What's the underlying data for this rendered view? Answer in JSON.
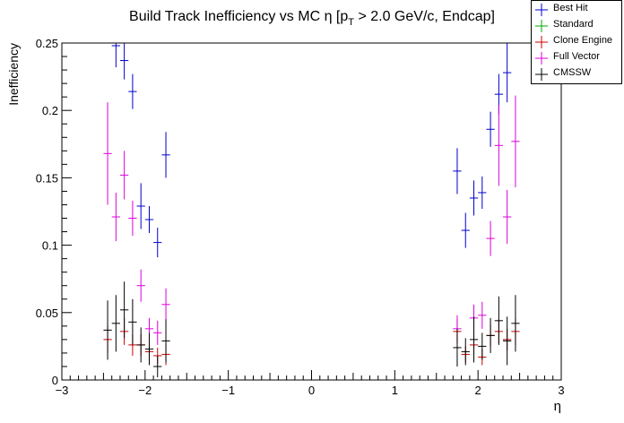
{
  "chart_data": {
    "type": "scatter",
    "title": "Build Track Inefficiency vs MC η [p_T > 2.0 GeV/c, Endcap]",
    "title_main": "Build Track Inefficiency vs MC η [p",
    "title_sub": "T",
    "title_tail": " > 2.0 GeV/c, Endcap]",
    "xlabel": "η",
    "ylabel": "Inefficiency",
    "xlim": [
      -3,
      3
    ],
    "ylim": [
      0,
      0.25
    ],
    "x_ticks": [
      -3,
      -2,
      -1,
      0,
      1,
      2,
      3
    ],
    "x_tick_labels": [
      "−3",
      "−2",
      "−1",
      "0",
      "1",
      "2",
      "3"
    ],
    "y_ticks": [
      0,
      0.05,
      0.1,
      0.15,
      0.2,
      0.25
    ],
    "y_tick_labels": [
      "0",
      "0.05",
      "0.1",
      "0.15",
      "0.2",
      "0.25"
    ],
    "legend_position": "top-right",
    "series": [
      {
        "name": "Best Hit",
        "color": "#0000cc",
        "points": [
          {
            "x": -2.35,
            "y": 0.248,
            "e": 0.016
          },
          {
            "x": -2.25,
            "y": 0.237,
            "e": 0.014
          },
          {
            "x": -2.15,
            "y": 0.214,
            "e": 0.013
          },
          {
            "x": -2.05,
            "y": 0.129,
            "e": 0.017
          },
          {
            "x": -1.95,
            "y": 0.119,
            "e": 0.01
          },
          {
            "x": -1.85,
            "y": 0.102,
            "e": 0.011
          },
          {
            "x": -1.75,
            "y": 0.167,
            "e": 0.017
          },
          {
            "x": 1.75,
            "y": 0.155,
            "e": 0.017
          },
          {
            "x": 1.85,
            "y": 0.111,
            "e": 0.013
          },
          {
            "x": 1.95,
            "y": 0.135,
            "e": 0.013
          },
          {
            "x": 2.05,
            "y": 0.139,
            "e": 0.012
          },
          {
            "x": 2.15,
            "y": 0.186,
            "e": 0.013
          },
          {
            "x": 2.25,
            "y": 0.212,
            "e": 0.015
          },
          {
            "x": 2.35,
            "y": 0.228,
            "e": 0.022
          }
        ]
      },
      {
        "name": "Standard",
        "color": "#00aa00",
        "points": []
      },
      {
        "name": "Clone Engine",
        "color": "#cc0000",
        "points": [
          {
            "x": -2.45,
            "y": 0.03,
            "e": 0.01
          },
          {
            "x": -2.25,
            "y": 0.036,
            "e": 0.01
          },
          {
            "x": -2.15,
            "y": 0.026,
            "e": 0.008
          },
          {
            "x": -2.05,
            "y": 0.026,
            "e": 0.008
          },
          {
            "x": -1.95,
            "y": 0.021,
            "e": 0.007
          },
          {
            "x": -1.85,
            "y": 0.018,
            "e": 0.006
          },
          {
            "x": -1.75,
            "y": 0.019,
            "e": 0.008
          },
          {
            "x": 1.75,
            "y": 0.036,
            "e": 0.009
          },
          {
            "x": 1.85,
            "y": 0.019,
            "e": 0.006
          },
          {
            "x": 1.95,
            "y": 0.026,
            "e": 0.007
          },
          {
            "x": 2.05,
            "y": 0.017,
            "e": 0.006
          },
          {
            "x": 2.15,
            "y": 0.033,
            "e": 0.008
          },
          {
            "x": 2.25,
            "y": 0.036,
            "e": 0.009
          },
          {
            "x": 2.35,
            "y": 0.03,
            "e": 0.008
          },
          {
            "x": 2.45,
            "y": 0.036,
            "e": 0.01
          }
        ]
      },
      {
        "name": "Full Vector",
        "color": "#dd00dd",
        "points": [
          {
            "x": -2.45,
            "y": 0.168,
            "e": 0.038
          },
          {
            "x": -2.35,
            "y": 0.121,
            "e": 0.018
          },
          {
            "x": -2.25,
            "y": 0.152,
            "e": 0.018
          },
          {
            "x": -2.15,
            "y": 0.12,
            "e": 0.013
          },
          {
            "x": -2.05,
            "y": 0.07,
            "e": 0.012
          },
          {
            "x": -1.95,
            "y": 0.038,
            "e": 0.008
          },
          {
            "x": -1.85,
            "y": 0.035,
            "e": 0.009
          },
          {
            "x": -1.75,
            "y": 0.056,
            "e": 0.012
          },
          {
            "x": 1.75,
            "y": 0.038,
            "e": 0.01
          },
          {
            "x": 1.95,
            "y": 0.046,
            "e": 0.01
          },
          {
            "x": 2.05,
            "y": 0.048,
            "e": 0.01
          },
          {
            "x": 2.15,
            "y": 0.105,
            "e": 0.013
          },
          {
            "x": 2.25,
            "y": 0.174,
            "e": 0.03
          },
          {
            "x": 2.35,
            "y": 0.121,
            "e": 0.02
          },
          {
            "x": 2.45,
            "y": 0.177,
            "e": 0.034
          }
        ]
      },
      {
        "name": "CMSSW",
        "color": "#000000",
        "points": [
          {
            "x": -2.45,
            "y": 0.037,
            "e": 0.022
          },
          {
            "x": -2.35,
            "y": 0.042,
            "e": 0.021
          },
          {
            "x": -2.25,
            "y": 0.052,
            "e": 0.021
          },
          {
            "x": -2.15,
            "y": 0.043,
            "e": 0.017
          },
          {
            "x": -2.05,
            "y": 0.026,
            "e": 0.013
          },
          {
            "x": -1.95,
            "y": 0.023,
            "e": 0.012
          },
          {
            "x": -1.85,
            "y": 0.01,
            "e": 0.008
          },
          {
            "x": -1.75,
            "y": 0.029,
            "e": 0.016
          },
          {
            "x": 1.75,
            "y": 0.024,
            "e": 0.014
          },
          {
            "x": 1.85,
            "y": 0.021,
            "e": 0.01
          },
          {
            "x": 1.95,
            "y": 0.03,
            "e": 0.017
          },
          {
            "x": 2.05,
            "y": 0.025,
            "e": 0.01
          },
          {
            "x": 2.15,
            "y": 0.033,
            "e": 0.013
          },
          {
            "x": 2.25,
            "y": 0.044,
            "e": 0.018
          },
          {
            "x": 2.35,
            "y": 0.029,
            "e": 0.018
          },
          {
            "x": 2.45,
            "y": 0.042,
            "e": 0.021
          }
        ]
      }
    ]
  }
}
